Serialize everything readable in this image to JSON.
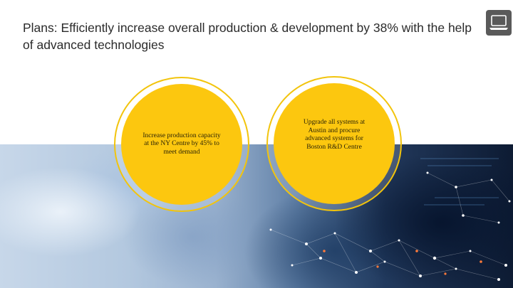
{
  "slide": {
    "title": "Plans: Efficiently increase overall production & development by 38% with the help of advanced technologies",
    "corner_icon": "laptop-icon",
    "accent_color": "#fcc70f",
    "plans": [
      {
        "text": "Increase production capacity at the NY Centre by 45% to meet demand"
      },
      {
        "text": "Upgrade all systems at Austin and procure advanced systems for Boston R&D Centre"
      }
    ],
    "background_image": "tech-workspace-photo"
  }
}
